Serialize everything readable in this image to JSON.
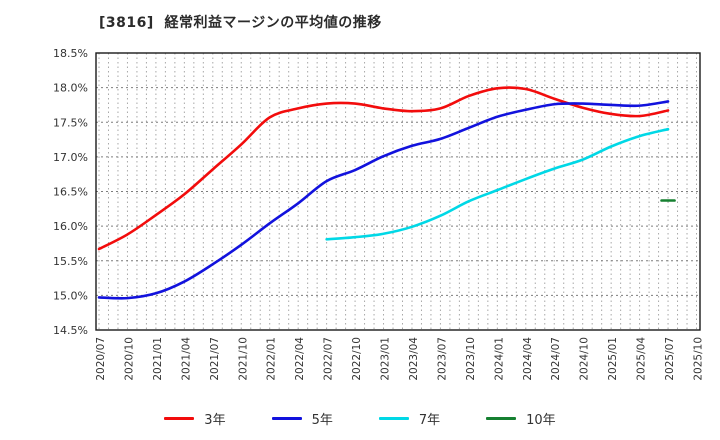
{
  "header": {
    "title": "[3816]  経常利益マージンの平均値の推移"
  },
  "chart_data": {
    "type": "line",
    "title": "[3816]  経常利益マージンの平均値の推移",
    "x_tick_labels": [
      "2020/07",
      "2020/10",
      "2021/01",
      "2021/04",
      "2021/07",
      "2021/10",
      "2022/01",
      "2022/04",
      "2022/07",
      "2022/10",
      "2023/01",
      "2023/04",
      "2023/07",
      "2023/10",
      "2024/01",
      "2024/04",
      "2024/07",
      "2024/10",
      "2025/01",
      "2025/04",
      "2025/07",
      "2025/10"
    ],
    "y_tick_labels": [
      "14.5%",
      "15.0%",
      "15.5%",
      "16.0%",
      "16.5%",
      "17.0%",
      "17.5%",
      "18.0%",
      "18.5%"
    ],
    "ylim": [
      14.5,
      18.5
    ],
    "y_tick_step": 0.5,
    "value_unit": "%",
    "grid": "dotted",
    "legend_position": "bottom",
    "series": [
      {
        "name": "3年",
        "color": "#f20c0c",
        "values": [
          15.67,
          15.88,
          16.16,
          16.46,
          16.82,
          17.18,
          17.57,
          17.7,
          17.77,
          17.77,
          17.7,
          17.66,
          17.7,
          17.88,
          17.99,
          17.98,
          17.84,
          17.71,
          17.62,
          17.59,
          17.67,
          null
        ]
      },
      {
        "name": "5年",
        "color": "#1212dd",
        "values": [
          14.97,
          14.96,
          15.03,
          15.2,
          15.45,
          15.73,
          16.04,
          16.33,
          16.65,
          16.81,
          17.01,
          17.16,
          17.26,
          17.42,
          17.58,
          17.68,
          17.76,
          17.77,
          17.75,
          17.74,
          17.8,
          null
        ]
      },
      {
        "name": "7年",
        "color": "#00d8e6",
        "values": [
          null,
          null,
          null,
          null,
          null,
          null,
          null,
          null,
          15.81,
          15.84,
          15.89,
          15.99,
          16.15,
          16.36,
          16.52,
          16.68,
          16.83,
          16.96,
          17.15,
          17.3,
          17.4,
          null
        ]
      },
      {
        "name": "10年",
        "color": "#168031",
        "values": [
          null,
          null,
          null,
          null,
          null,
          null,
          null,
          null,
          null,
          null,
          null,
          null,
          null,
          null,
          null,
          null,
          null,
          null,
          null,
          null,
          16.37,
          null
        ]
      }
    ]
  }
}
